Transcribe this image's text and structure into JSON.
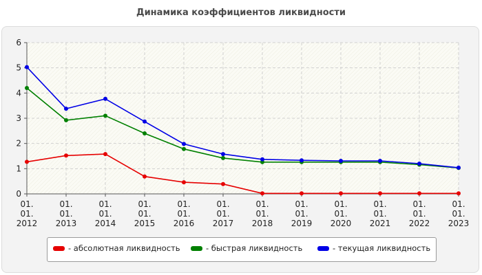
{
  "page": {
    "title": "Динамика коэффициентов ликвидности"
  },
  "chart_data": {
    "type": "line",
    "title": "Динамика коэффициентов ликвидности",
    "xlabel": "",
    "ylabel": "",
    "categories": [
      "01.\n01.\n2012",
      "01.\n01.\n2013",
      "01.\n01.\n2014",
      "01.\n01.\n2015",
      "01.\n01.\n2016",
      "01.\n01.\n2017",
      "01.\n01.\n2018",
      "01.\n01.\n2019",
      "01.\n01.\n2020",
      "01.\n01.\n2021",
      "01.\n01.\n2022",
      "01.\n01.\n2023"
    ],
    "ylim": [
      0,
      6
    ],
    "yticks": [
      0,
      1,
      2,
      3,
      4,
      5,
      6
    ],
    "grid": true,
    "legend_position": "bottom",
    "series": [
      {
        "name": "- абсолютная ликвидность",
        "color": "#e60000",
        "values": [
          1.27,
          1.52,
          1.58,
          0.69,
          0.46,
          0.39,
          0.02,
          0.02,
          0.02,
          0.02,
          0.02,
          0.02
        ]
      },
      {
        "name": "- быстрая ликвидность",
        "color": "#008000",
        "values": [
          4.2,
          2.92,
          3.1,
          2.4,
          1.78,
          1.42,
          1.26,
          1.26,
          1.26,
          1.26,
          1.16,
          1.03
        ]
      },
      {
        "name": "- текущая ликвидность",
        "color": "#0000e6",
        "values": [
          5.03,
          3.38,
          3.77,
          2.87,
          1.98,
          1.58,
          1.37,
          1.33,
          1.31,
          1.31,
          1.2,
          1.04
        ]
      }
    ]
  }
}
